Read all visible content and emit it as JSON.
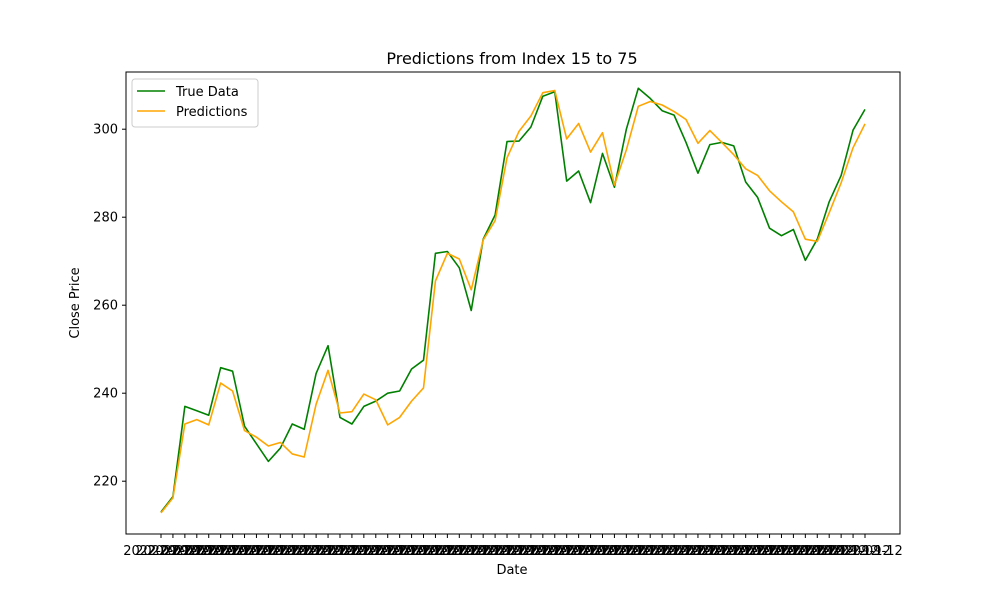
{
  "chart_data": {
    "type": "line",
    "title": "Predictions from Index 15 to 75",
    "xlabel": "Date",
    "ylabel": "Close Price",
    "ylim": [
      208,
      313
    ],
    "yticks": [
      220,
      240,
      260,
      280,
      300
    ],
    "x_tick_label": "2022-09-12",
    "grid": false,
    "legend_position": "upper-left",
    "series": [
      {
        "name": "True Data",
        "color": "#008000",
        "values": [
          213,
          216.5,
          237,
          236,
          235,
          245.8,
          245,
          232.5,
          228.5,
          224.5,
          227.5,
          233,
          231.8,
          244.5,
          250.8,
          234.5,
          233,
          237,
          238.2,
          240,
          240.5,
          245.5,
          247.5,
          271.8,
          272.2,
          268.5,
          258.8,
          275,
          280.5,
          297.2,
          297.3,
          300.5,
          307.5,
          308.5,
          288.2,
          290.5,
          283.3,
          294.5,
          286.8,
          300,
          309.3,
          307,
          304.2,
          303.2,
          297,
          290,
          296.5,
          297,
          296.2,
          288,
          284.5,
          277.5,
          275.8,
          277.2,
          270.2,
          275,
          283.5,
          289.5,
          299.8,
          304.5
        ]
      },
      {
        "name": "Predictions",
        "color": "#ffa500",
        "values": [
          212.8,
          216.2,
          233,
          234,
          232.8,
          242.3,
          240.5,
          231.5,
          230,
          228,
          228.8,
          226.2,
          225.5,
          237.5,
          245.2,
          235.5,
          235.8,
          239.8,
          238.5,
          232.8,
          234.5,
          238.2,
          241.2,
          265.5,
          271.8,
          270.5,
          263.5,
          274.8,
          279.2,
          293.5,
          299.5,
          303,
          308.3,
          308.8,
          297.8,
          301.3,
          294.8,
          299.2,
          287.3,
          295.3,
          305.2,
          306.3,
          305.5,
          304,
          302.2,
          296.8,
          299.7,
          297,
          294.2,
          291,
          289.5,
          286,
          283.5,
          281.2,
          275,
          274.5,
          281,
          287.8,
          295.8,
          301.2
        ]
      }
    ]
  }
}
